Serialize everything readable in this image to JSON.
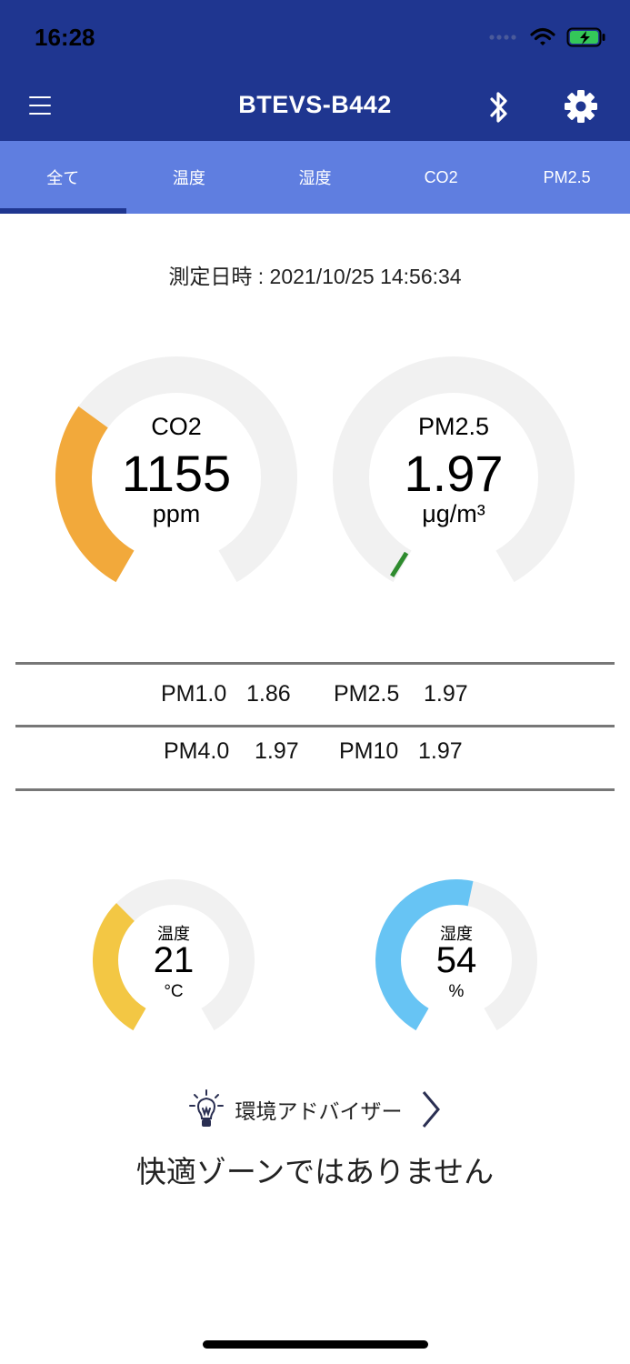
{
  "status": {
    "time": "16:28"
  },
  "header": {
    "title": "BTEVS-B442"
  },
  "tabs": [
    {
      "label": "全て",
      "active": true
    },
    {
      "label": "温度",
      "active": false
    },
    {
      "label": "湿度",
      "active": false
    },
    {
      "label": "CO2",
      "active": false
    },
    {
      "label": "PM2.5",
      "active": false
    }
  ],
  "measurement": {
    "timestamp": "測定日時 : 2021/10/25 14:56:34"
  },
  "gauges": {
    "co2": {
      "label": "CO2",
      "value": "1155",
      "unit": "ppm",
      "fill": 0.32,
      "color": "#f2a93b"
    },
    "pm25": {
      "label": "PM2.5",
      "value": "1.97",
      "unit": "μg/m³",
      "fill": 0.01,
      "color": "#2e8b2e"
    },
    "temp": {
      "label": "温度",
      "value": "21",
      "unit": "°C",
      "fill": 0.35,
      "color": "#f3c744"
    },
    "humidity": {
      "label": "湿度",
      "value": "54",
      "unit": "%",
      "fill": 0.54,
      "color": "#67c4f4"
    }
  },
  "pm_table": {
    "row1": {
      "a_label": "PM1.0",
      "a_value": "1.86",
      "b_label": "PM2.5",
      "b_value": "1.97"
    },
    "row2": {
      "a_label": "PM4.0",
      "a_value": "1.97",
      "b_label": "PM10",
      "b_value": "1.97"
    }
  },
  "advisor": {
    "label": "環境アドバイザー",
    "message": "快適ゾーンではありません"
  },
  "colors": {
    "header": "#1f3690",
    "tabs": "#5f7ee0",
    "track": "#f1f1f1"
  }
}
